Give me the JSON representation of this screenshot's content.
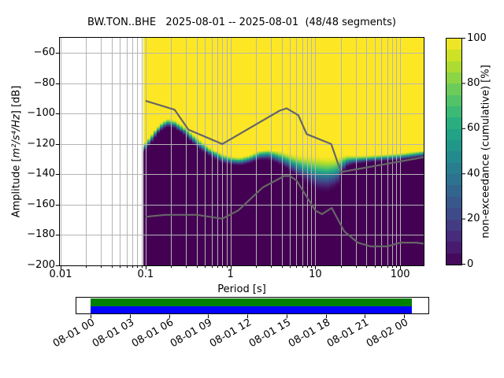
{
  "chart_data": {
    "type": "heatmap",
    "title": "BW.TON..BHE   2025-08-01 -- 2025-08-01  (48/48 segments)",
    "station": "BW.TON..BHE",
    "date_range": "2025-08-01 -- 2025-08-01",
    "segments": "48/48 segments",
    "xlabel": "Period [s]",
    "ylabel_parts": {
      "prefix": "Amplitude [",
      "math": "m²/s⁴/Hz",
      "suffix": "] [dB]"
    },
    "xscale": "log",
    "xlim": [
      0.01,
      190
    ],
    "ylim": [
      -200,
      -50
    ],
    "grid": true,
    "colormap": "viridis",
    "x_ticks": {
      "values": [
        0.01,
        0.1,
        1,
        10,
        100
      ],
      "labels": [
        "0.01",
        "0.1",
        "1",
        "10",
        "100"
      ]
    },
    "y_ticks": {
      "values": [
        -60,
        -80,
        -100,
        -120,
        -140,
        -160,
        -180,
        -200
      ],
      "labels": [
        "−60",
        "−80",
        "−100",
        "−120",
        "−140",
        "−160",
        "−180",
        "−200"
      ]
    },
    "colorbar": {
      "label": "non-exceedance (cumulative) [%]",
      "range": [
        0,
        100
      ],
      "ticks": {
        "values": [
          0,
          20,
          40,
          60,
          80,
          100
        ],
        "labels": [
          "0",
          "20",
          "40",
          "60",
          "80",
          "100"
        ]
      },
      "n_bands": 20
    },
    "distribution": {
      "note": "cumulative non-exceedance vs period; median_db = 50% level, halfwidth_db = half-width of 0-100% transition",
      "min_period_s": 0.095,
      "periods_s": [
        0.095,
        0.12,
        0.15,
        0.18,
        0.22,
        0.28,
        0.35,
        0.45,
        0.6,
        0.8,
        1.0,
        1.3,
        1.7,
        2.2,
        2.8,
        3.5,
        4.5,
        5.6,
        7.1,
        9.0,
        11,
        14,
        18,
        21,
        24,
        30,
        40,
        55,
        75,
        100,
        140,
        195
      ],
      "median_db": [
        -123,
        -116,
        -109,
        -106,
        -107,
        -111,
        -116,
        -121,
        -126,
        -129.5,
        -131,
        -131.5,
        -130,
        -127.5,
        -127,
        -128.5,
        -131,
        -133.5,
        -136,
        -138,
        -139.5,
        -140,
        -138.5,
        -133,
        -131,
        -130.5,
        -130,
        -129.5,
        -129,
        -128.5,
        -127.5,
        -126.5
      ],
      "halfwidth_db": [
        3,
        3,
        3,
        3,
        3,
        3.5,
        3.5,
        3.5,
        3.5,
        3.5,
        3,
        3,
        3,
        3.5,
        4,
        4.5,
        5.5,
        7,
        9,
        11,
        12.5,
        12.5,
        11,
        6,
        4,
        3,
        2.5,
        2.5,
        2.5,
        2.5,
        2.5,
        2.5
      ]
    },
    "noise_models": {
      "color": "#666666",
      "nhnm": [
        [
          0.1,
          -91.5
        ],
        [
          0.22,
          -97.4
        ],
        [
          0.32,
          -110.5
        ],
        [
          0.8,
          -120
        ],
        [
          3.8,
          -98
        ],
        [
          4.6,
          -96.5
        ],
        [
          6.3,
          -101
        ],
        [
          7.9,
          -113.5
        ],
        [
          15.4,
          -120
        ],
        [
          20,
          -138.5
        ],
        [
          354.8,
          -126
        ]
      ],
      "nlnm": [
        [
          0.1,
          -168
        ],
        [
          0.17,
          -166.7
        ],
        [
          0.4,
          -166.7
        ],
        [
          0.8,
          -169.2
        ],
        [
          1.24,
          -163.7
        ],
        [
          2.4,
          -148.6
        ],
        [
          4.3,
          -141.1
        ],
        [
          5,
          -141.1
        ],
        [
          6,
          -144
        ],
        [
          10,
          -163.8
        ],
        [
          12,
          -166.2
        ],
        [
          15.6,
          -162.1
        ],
        [
          21.9,
          -177.5
        ],
        [
          31.6,
          -185
        ],
        [
          45,
          -187.5
        ],
        [
          70,
          -187.5
        ],
        [
          101,
          -185
        ],
        [
          154,
          -185
        ],
        [
          328,
          -187.5
        ]
      ]
    },
    "viridis_anchors": [
      [
        0,
        68,
        1,
        84
      ],
      [
        0.1,
        72,
        36,
        117
      ],
      [
        0.2,
        65,
        68,
        135
      ],
      [
        0.3,
        53,
        95,
        141
      ],
      [
        0.4,
        42,
        120,
        142
      ],
      [
        0.5,
        33,
        145,
        140
      ],
      [
        0.6,
        34,
        168,
        132
      ],
      [
        0.7,
        68,
        190,
        112
      ],
      [
        0.8,
        122,
        209,
        81
      ],
      [
        0.9,
        189,
        223,
        38
      ],
      [
        1,
        253,
        231,
        37
      ]
    ],
    "colors": {
      "grid": "#b4b4b4",
      "spine": "#000000",
      "background": "#ffffff"
    }
  },
  "timeline": {
    "tick_labels": [
      "08-01 00",
      "08-01 03",
      "08-01 06",
      "08-01 09",
      "08-01 12",
      "08-01 15",
      "08-01 18",
      "08-01 21",
      "08-02 00"
    ],
    "data_coverage_color": "#008000",
    "ppsd_coverage_color": "#0000ff"
  }
}
